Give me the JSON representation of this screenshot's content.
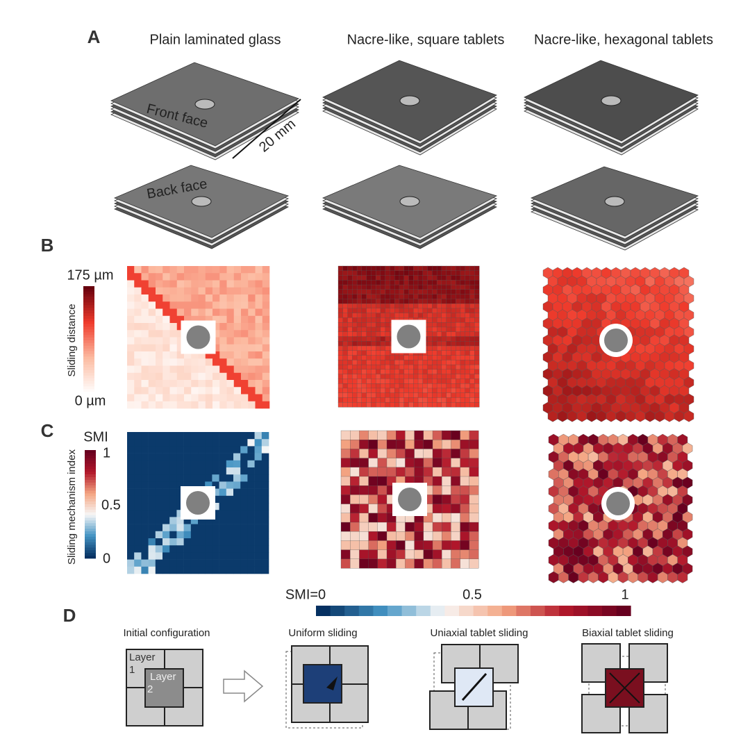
{
  "panel_a": {
    "label": "A",
    "columns": [
      "Plain laminated glass",
      "Nacre-like, square tablets",
      "Nacre-like, hexagonal tablets"
    ],
    "front_face": "Front face",
    "back_face": "Back face",
    "dimension": "20 mm"
  },
  "panel_b": {
    "label": "B",
    "colorbar_max": "175 µm",
    "colorbar_min": "0 µm",
    "colorbar_title": "Sliding distance"
  },
  "panel_c": {
    "label": "C",
    "colorbar_unit": "SMI",
    "colorbar_ticks": [
      "1",
      "0.5",
      "0"
    ],
    "colorbar_title": "Sliding mechanism index"
  },
  "panel_d": {
    "label": "D",
    "colorbar_ticks": [
      "SMI=0",
      "0.5",
      "1"
    ],
    "titles": [
      "Initial configuration",
      "Uniform sliding",
      "Uniaxial tablet sliding",
      "Biaxial tablet sliding"
    ],
    "layer_1": [
      "Layer",
      "1"
    ],
    "layer_2": [
      "Layer",
      "2"
    ]
  }
}
